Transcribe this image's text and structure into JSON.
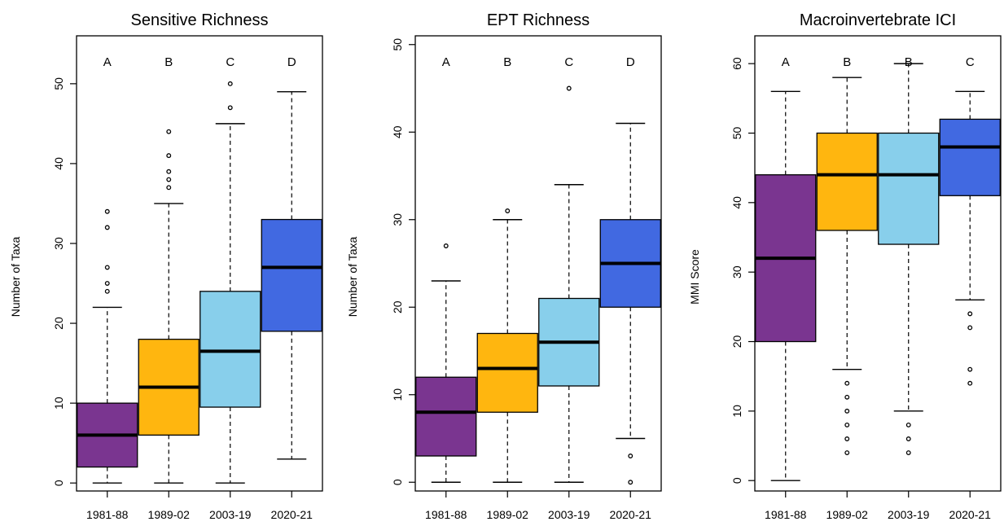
{
  "colors": {
    "1981-88": "#7a3590",
    "1989-02": "#ffb60f",
    "2003-19": "#88cfeb",
    "2020-21": "#4169e1"
  },
  "chart_data": [
    {
      "type": "boxplot",
      "title": "Sensitive Richness",
      "ylabel": "Number of Taxa",
      "ylim": [
        -1,
        56
      ],
      "yticks": [
        0,
        10,
        20,
        30,
        40,
        50
      ],
      "categories": [
        "1981-88",
        "1989-02",
        "2003-19",
        "2020-21"
      ],
      "group_letters": [
        "A",
        "B",
        "C",
        "D"
      ],
      "boxes": [
        {
          "category": "1981-88",
          "whisker_low": 0,
          "q1": 2,
          "median": 6,
          "q3": 10,
          "whisker_high": 22,
          "outliers": [
            24,
            25,
            27,
            32,
            34
          ]
        },
        {
          "category": "1989-02",
          "whisker_low": 0,
          "q1": 6,
          "median": 12,
          "q3": 18,
          "whisker_high": 35,
          "outliers": [
            37,
            38,
            39,
            41,
            44
          ]
        },
        {
          "category": "2003-19",
          "whisker_low": 0,
          "q1": 9.5,
          "median": 16.5,
          "q3": 24,
          "whisker_high": 45,
          "outliers": [
            47,
            50
          ]
        },
        {
          "category": "2020-21",
          "whisker_low": 3,
          "q1": 19,
          "median": 27,
          "q3": 33,
          "whisker_high": 49,
          "outliers": []
        }
      ]
    },
    {
      "type": "boxplot",
      "title": "EPT Richness",
      "ylabel": "Number of Taxa",
      "ylim": [
        -1,
        51
      ],
      "yticks": [
        0,
        10,
        20,
        30,
        40,
        50
      ],
      "categories": [
        "1981-88",
        "1989-02",
        "2003-19",
        "2020-21"
      ],
      "group_letters": [
        "A",
        "B",
        "C",
        "D"
      ],
      "boxes": [
        {
          "category": "1981-88",
          "whisker_low": 0,
          "q1": 3,
          "median": 8,
          "q3": 12,
          "whisker_high": 23,
          "outliers": [
            27
          ]
        },
        {
          "category": "1989-02",
          "whisker_low": 0,
          "q1": 8,
          "median": 13,
          "q3": 17,
          "whisker_high": 30,
          "outliers": [
            31
          ]
        },
        {
          "category": "2003-19",
          "whisker_low": 0,
          "q1": 11,
          "median": 16,
          "q3": 21,
          "whisker_high": 34,
          "outliers": [
            45
          ]
        },
        {
          "category": "2020-21",
          "whisker_low": 5,
          "q1": 20,
          "median": 25,
          "q3": 30,
          "whisker_high": 41,
          "outliers": [
            0,
            3
          ]
        }
      ]
    },
    {
      "type": "boxplot",
      "title": "Macroinvertebrate ICI",
      "ylabel": "MMI Score",
      "ylim": [
        -1.5,
        64
      ],
      "yticks": [
        0,
        10,
        20,
        30,
        40,
        50,
        60
      ],
      "categories": [
        "1981-88",
        "1989-02",
        "2003-19",
        "2020-21"
      ],
      "group_letters": [
        "A",
        "B",
        "B",
        "C"
      ],
      "boxes": [
        {
          "category": "1981-88",
          "whisker_low": 0,
          "q1": 20,
          "median": 32,
          "q3": 44,
          "whisker_high": 56,
          "outliers": []
        },
        {
          "category": "1989-02",
          "whisker_low": 16,
          "q1": 36,
          "median": 44,
          "q3": 50,
          "whisker_high": 58,
          "outliers": [
            4,
            6,
            8,
            10,
            12,
            14
          ]
        },
        {
          "category": "2003-19",
          "whisker_low": 10,
          "q1": 34,
          "median": 44,
          "q3": 50,
          "whisker_high": 60,
          "outliers": [
            4,
            6,
            8
          ]
        },
        {
          "category": "2020-21",
          "whisker_low": 26,
          "q1": 41,
          "median": 48,
          "q3": 52,
          "whisker_high": 56,
          "outliers": [
            14,
            16,
            22,
            24
          ]
        }
      ]
    }
  ]
}
